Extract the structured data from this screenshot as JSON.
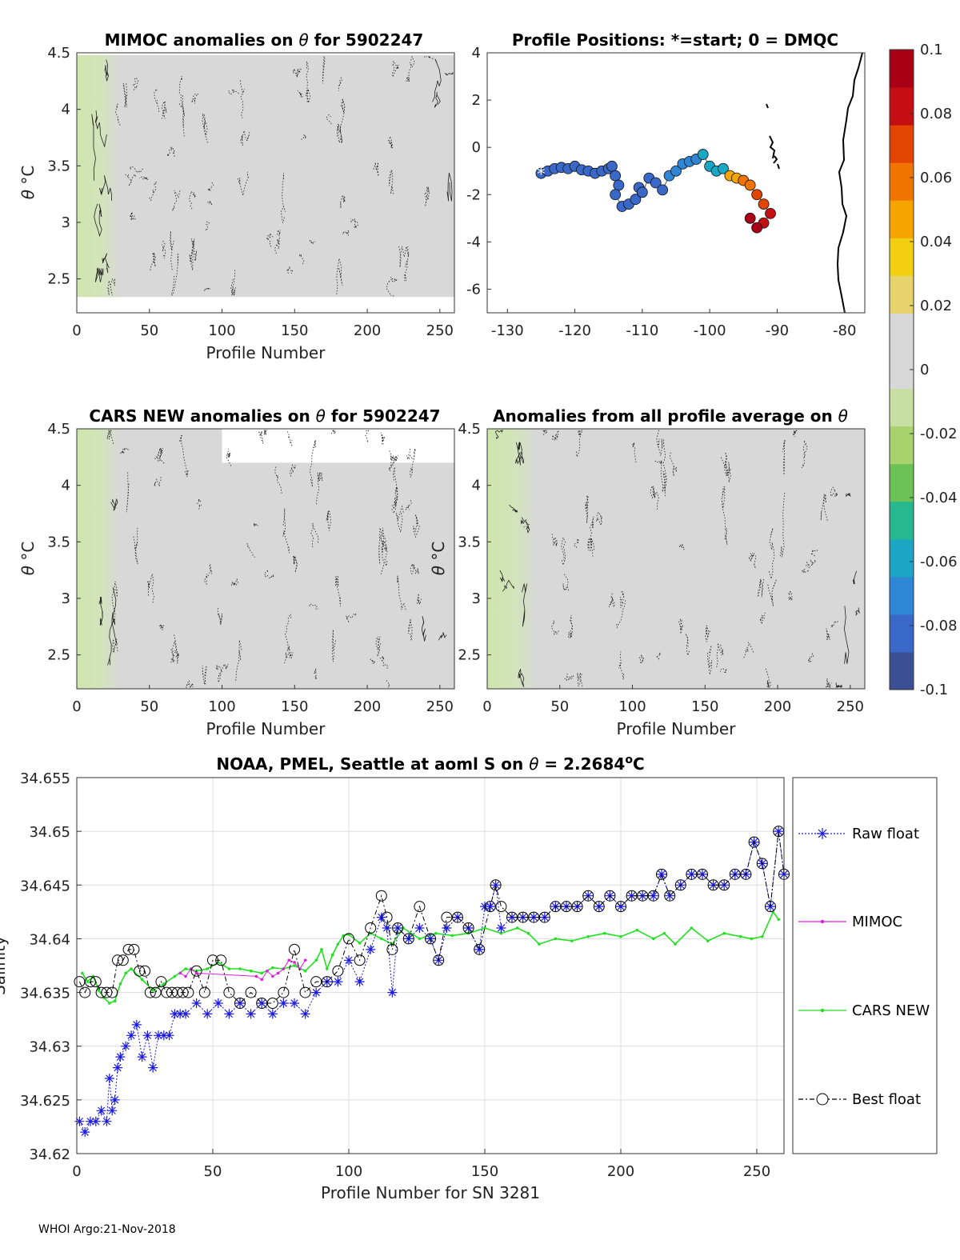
{
  "chart_data": [
    {
      "type": "heatmap",
      "id": "p1",
      "title_prefix": "MIMOC anomalies on ",
      "title_theta": "θ",
      "title_suffix": "  for 5902247",
      "xlabel": "Profile Number",
      "ylabel_theta": "θ",
      "ylabel_unit": " °C",
      "xlim": [
        0,
        260
      ],
      "ylim": [
        2.2,
        4.5
      ],
      "xticks": [
        0,
        50,
        100,
        150,
        200,
        250
      ],
      "yticks": [
        2.5,
        3,
        3.5,
        4,
        4.5
      ],
      "ytick_labels": [
        "2.5",
        "3",
        "3.5",
        "4",
        "4.5"
      ],
      "data_top": 4.48,
      "data_bottom": 2.34,
      "green_band_end": 30
    },
    {
      "type": "scatter",
      "id": "p2",
      "title": "Profile Positions: *=start; 0 = DMQC",
      "xlim": [
        -133,
        -77
      ],
      "ylim": [
        -7,
        4
      ],
      "xticks": [
        -130,
        -120,
        -110,
        -100,
        -90,
        -80
      ],
      "yticks": [
        -6,
        -4,
        -2,
        0,
        2,
        4
      ],
      "start_marker": "*",
      "track": [
        [
          -125,
          -1.1
        ],
        [
          -124,
          -1.0
        ],
        [
          -123,
          -0.9
        ],
        [
          -122,
          -0.85
        ],
        [
          -121,
          -0.9
        ],
        [
          -120,
          -0.8
        ],
        [
          -119,
          -0.95
        ],
        [
          -118,
          -1.0
        ],
        [
          -117,
          -1.1
        ],
        [
          -116,
          -1.0
        ],
        [
          -115,
          -0.9
        ],
        [
          -114.5,
          -0.8
        ],
        [
          -114,
          -1.2
        ],
        [
          -113.5,
          -1.6
        ],
        [
          -114,
          -2.0
        ],
        [
          -113,
          -2.5
        ],
        [
          -112,
          -2.4
        ],
        [
          -111,
          -2.2
        ],
        [
          -110.5,
          -1.7
        ],
        [
          -110,
          -1.9
        ],
        [
          -109,
          -1.3
        ],
        [
          -108,
          -1.5
        ],
        [
          -107,
          -1.8
        ],
        [
          -106,
          -1.2
        ],
        [
          -105,
          -1.0
        ],
        [
          -104,
          -0.7
        ],
        [
          -103,
          -0.6
        ],
        [
          -102,
          -0.5
        ],
        [
          -101,
          -0.3
        ],
        [
          -100,
          -0.8
        ],
        [
          -99,
          -1.0
        ],
        [
          -98,
          -0.9
        ],
        [
          -97,
          -1.2
        ],
        [
          -96,
          -1.3
        ],
        [
          -95,
          -1.4
        ],
        [
          -94,
          -1.6
        ],
        [
          -93,
          -2.0
        ],
        [
          -92,
          -2.4
        ],
        [
          -91,
          -2.8
        ],
        [
          -92,
          -3.2
        ],
        [
          -93,
          -3.4
        ],
        [
          -94,
          -3.0
        ]
      ],
      "colorbar": {
        "ticks": [
          -0.1,
          -0.08,
          -0.06,
          -0.04,
          -0.02,
          0,
          0.02,
          0.04,
          0.06,
          0.08,
          0.1
        ],
        "tick_labels": [
          "-0.1",
          "-0.08",
          "-0.06",
          "-0.04",
          "-0.02",
          "0",
          "0.02",
          "0.04",
          "0.06",
          "0.08",
          "0.1"
        ],
        "colors": [
          "#3a4f94",
          "#3a68c8",
          "#2f86d4",
          "#1aa6c4",
          "#26b98f",
          "#6dc257",
          "#a8d36c",
          "#c8dfa3",
          "#d8d8d8",
          "#d8d8d8",
          "#e6d36c",
          "#f2cf10",
          "#f5a400",
          "#f27400",
          "#e34400",
          "#c50e12",
          "#a90016"
        ]
      }
    },
    {
      "type": "heatmap",
      "id": "p3",
      "title_prefix": "CARS NEW anomalies on ",
      "title_theta": "θ",
      "title_suffix": " for 5902247",
      "xlabel": "Profile Number",
      "ylabel_theta": "θ",
      "ylabel_unit": " °C",
      "xlim": [
        0,
        260
      ],
      "ylim": [
        2.2,
        4.5
      ],
      "xticks": [
        0,
        50,
        100,
        150,
        200,
        250
      ],
      "yticks": [
        2.5,
        3,
        3.5,
        4,
        4.5
      ],
      "ytick_labels": [
        "2.5",
        "3",
        "3.5",
        "4",
        "4.5"
      ],
      "data_top": 4.5,
      "data_bottom": 2.2,
      "green_band_end": 30
    },
    {
      "type": "heatmap",
      "id": "p4",
      "title_prefix": "Anomalies from all profile average on ",
      "title_theta": "θ",
      "title_suffix": "",
      "xlabel": "Profile Number",
      "ylabel_theta": "θ",
      "ylabel_unit": " °C",
      "xlim": [
        0,
        260
      ],
      "ylim": [
        2.2,
        4.5
      ],
      "xticks": [
        0,
        50,
        100,
        150,
        200,
        250
      ],
      "yticks": [
        2.5,
        3,
        3.5,
        4,
        4.5
      ],
      "ytick_labels": [
        "2.5",
        "3",
        "3.5",
        "4",
        "4.5"
      ],
      "data_top": 4.5,
      "data_bottom": 2.2,
      "green_band_end": 35
    },
    {
      "type": "line",
      "id": "p5",
      "title_main": "NOAA, PMEL, Seattle at aoml S on ",
      "title_theta": "θ",
      "title_value": " = 2.2684",
      "title_deg": "o",
      "title_unit": "C",
      "xlabel": "Profile Number for SN 3281",
      "ylabel": "Salinity",
      "xlim": [
        0,
        260
      ],
      "ylim": [
        34.62,
        34.655
      ],
      "xticks": [
        0,
        50,
        100,
        150,
        200,
        250
      ],
      "yticks": [
        34.62,
        34.625,
        34.63,
        34.635,
        34.64,
        34.645,
        34.65,
        34.655
      ],
      "ytick_labels": [
        "34.62",
        "34.625",
        "34.63",
        "34.635",
        "34.64",
        "34.645",
        "34.65",
        "34.655"
      ],
      "series": [
        {
          "name": "Raw float",
          "color": "#1a1ae6",
          "x": [
            1,
            3,
            5,
            7,
            9,
            11,
            12,
            13,
            14,
            15,
            16,
            18,
            20,
            22,
            24,
            26,
            28,
            30,
            32,
            34,
            36,
            38,
            40,
            44,
            48,
            52,
            56,
            60,
            64,
            68,
            72,
            76,
            80,
            84,
            88,
            92,
            96,
            100,
            104,
            108,
            112,
            114,
            116,
            118,
            122,
            126,
            130,
            133,
            136,
            140,
            144,
            148,
            150,
            152,
            154,
            156,
            160,
            164,
            168,
            172,
            176,
            180,
            184,
            188,
            192,
            196,
            200,
            204,
            208,
            212,
            215,
            218,
            222,
            226,
            230,
            234,
            238,
            242,
            246,
            249,
            252,
            255,
            258,
            260
          ],
          "y": [
            34.623,
            34.622,
            34.623,
            34.623,
            34.624,
            34.623,
            34.627,
            34.624,
            34.625,
            34.628,
            34.629,
            34.63,
            34.631,
            34.632,
            34.629,
            34.631,
            34.628,
            34.631,
            34.631,
            34.631,
            34.633,
            34.633,
            34.633,
            34.634,
            34.633,
            34.634,
            34.633,
            34.634,
            34.633,
            34.634,
            34.633,
            34.634,
            34.634,
            34.633,
            34.635,
            34.636,
            34.636,
            34.638,
            34.636,
            34.639,
            34.642,
            34.641,
            34.635,
            34.641,
            34.64,
            34.641,
            34.64,
            34.638,
            34.641,
            34.642,
            34.641,
            34.639,
            34.643,
            34.643,
            34.645,
            34.641,
            34.642,
            34.642,
            34.642,
            34.642,
            34.643,
            34.643,
            34.643,
            34.644,
            34.643,
            34.644,
            34.643,
            34.644,
            34.644,
            34.644,
            34.646,
            34.644,
            34.645,
            34.646,
            34.646,
            34.645,
            34.645,
            34.646,
            34.646,
            34.649,
            34.647,
            34.643,
            34.65,
            34.646
          ]
        },
        {
          "name": "MIMOC",
          "color": "#e020e0",
          "x": [
            38,
            40,
            42,
            44,
            66,
            68,
            70,
            72,
            74,
            76,
            78,
            80,
            82,
            84
          ],
          "y": [
            34.6368,
            34.6365,
            34.6372,
            34.6368,
            34.6365,
            34.6362,
            34.637,
            34.6365,
            34.6368,
            34.6372,
            34.638,
            34.6378,
            34.6372,
            34.638
          ]
        },
        {
          "name": "CARS NEW",
          "color": "#22e022",
          "x": [
            2,
            4,
            6,
            8,
            10,
            12,
            14,
            16,
            18,
            20,
            24,
            28,
            32,
            36,
            40,
            44,
            48,
            52,
            56,
            60,
            64,
            68,
            72,
            76,
            80,
            84,
            88,
            90,
            92,
            94,
            96,
            98,
            100,
            104,
            108,
            112,
            116,
            120,
            126,
            132,
            138,
            144,
            150,
            156,
            162,
            166,
            170,
            176,
            182,
            188,
            194,
            200,
            206,
            212,
            216,
            220,
            226,
            232,
            238,
            244,
            248,
            252,
            256,
            258
          ],
          "y": [
            34.6368,
            34.636,
            34.6365,
            34.6352,
            34.6345,
            34.634,
            34.6342,
            34.6358,
            34.6368,
            34.6372,
            34.6362,
            34.6352,
            34.6358,
            34.6365,
            34.6372,
            34.637,
            34.6372,
            34.6378,
            34.6372,
            34.6372,
            34.637,
            34.6368,
            34.6373,
            34.6372,
            34.6375,
            34.637,
            34.638,
            34.639,
            34.6372,
            34.6385,
            34.6395,
            34.6403,
            34.6404,
            34.6396,
            34.6405,
            34.64,
            34.6395,
            34.641,
            34.64,
            34.6405,
            34.6403,
            34.6405,
            34.641,
            34.6405,
            34.641,
            34.6405,
            34.6395,
            34.64,
            34.6398,
            34.6402,
            34.6405,
            34.6402,
            34.6408,
            34.64,
            34.6405,
            34.6395,
            34.641,
            34.6398,
            34.6405,
            34.6402,
            34.64,
            34.6402,
            34.6425,
            34.6418
          ]
        },
        {
          "name": "Best float",
          "color": "#000000",
          "x": [
            1,
            3,
            5,
            7,
            9,
            11,
            13,
            15,
            17,
            19,
            21,
            23,
            25,
            27,
            29,
            31,
            33,
            35,
            37,
            39,
            41,
            44,
            47,
            50,
            53,
            56,
            60,
            64,
            68,
            72,
            76,
            80,
            84,
            88,
            92,
            96,
            100,
            104,
            108,
            112,
            114,
            116,
            118,
            122,
            126,
            130,
            133,
            136,
            140,
            144,
            148,
            152,
            154,
            156,
            160,
            164,
            168,
            172,
            176,
            180,
            184,
            188,
            192,
            196,
            200,
            204,
            208,
            212,
            215,
            218,
            222,
            226,
            230,
            234,
            238,
            242,
            246,
            249,
            252,
            255,
            258,
            260
          ],
          "y": [
            34.636,
            34.635,
            34.636,
            34.636,
            34.635,
            34.635,
            34.635,
            34.638,
            34.638,
            34.639,
            34.639,
            34.637,
            34.637,
            34.635,
            34.635,
            34.636,
            34.635,
            34.635,
            34.635,
            34.635,
            34.635,
            34.637,
            34.635,
            34.638,
            34.638,
            34.635,
            34.634,
            34.635,
            34.634,
            34.634,
            34.635,
            34.639,
            34.635,
            34.636,
            34.636,
            34.637,
            34.64,
            34.638,
            34.641,
            34.644,
            34.642,
            34.639,
            34.641,
            34.64,
            34.643,
            34.64,
            34.638,
            34.642,
            34.642,
            34.641,
            34.639,
            34.643,
            34.645,
            34.643,
            34.642,
            34.642,
            34.642,
            34.642,
            34.643,
            34.643,
            34.643,
            34.644,
            34.643,
            34.644,
            34.643,
            34.644,
            34.644,
            34.644,
            34.646,
            34.644,
            34.645,
            34.646,
            34.646,
            34.645,
            34.645,
            34.646,
            34.646,
            34.649,
            34.647,
            34.643,
            34.65,
            34.646
          ]
        }
      ],
      "legend_position": "right"
    }
  ],
  "footer": "WHOI Argo:21-Nov-2018"
}
